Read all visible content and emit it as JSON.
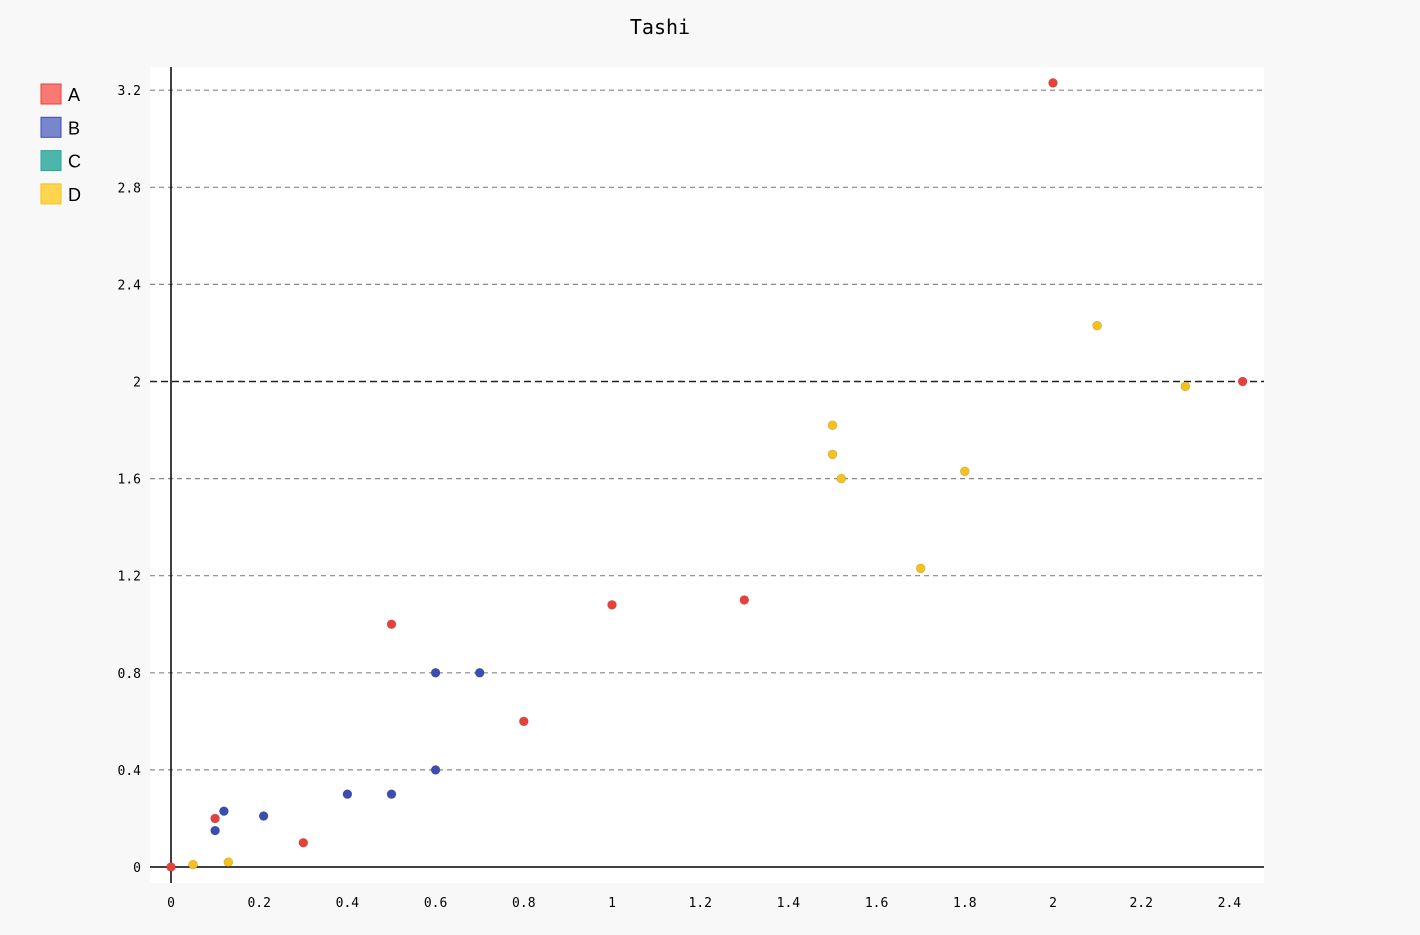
{
  "chart_data": {
    "type": "scatter",
    "title": "Tashi",
    "xlabel": "",
    "ylabel": "",
    "xlim": [
      0,
      2.48
    ],
    "ylim": [
      0,
      3.3
    ],
    "x_ticks": [
      0,
      0.2,
      0.4,
      0.6,
      0.8,
      1,
      1.2,
      1.4,
      1.6,
      1.8,
      2,
      2.2,
      2.4
    ],
    "y_ticks": [
      0,
      0.4,
      0.8,
      1.2,
      1.6,
      2,
      2.4,
      2.8,
      3.2
    ],
    "x_tick_labels": [
      "0",
      "0.2",
      "0.4",
      "0.6",
      "0.8",
      "1",
      "1.2",
      "1.4",
      "1.6",
      "1.8",
      "2",
      "2.2",
      "2.4"
    ],
    "y_tick_labels": [
      "0",
      "0.4",
      "0.8",
      "1.2",
      "1.6",
      "2",
      "2.4",
      "2.8",
      "3.2"
    ],
    "grid": "horizontal dashed",
    "highlight_y": 2,
    "legend_position": "top-left",
    "series": [
      {
        "name": "A",
        "color": "#e8413a",
        "legend_color": "#f87a72",
        "points": [
          [
            0,
            0
          ],
          [
            0.1,
            0.2
          ],
          [
            0.3,
            0.1
          ],
          [
            0.5,
            1.0
          ],
          [
            0.8,
            0.6
          ],
          [
            1.0,
            1.08
          ],
          [
            1.3,
            1.1
          ],
          [
            2.0,
            3.23
          ],
          [
            2.43,
            2.0
          ]
        ]
      },
      {
        "name": "B",
        "color": "#3b4db2",
        "legend_color": "#7886cc",
        "points": [
          [
            0.1,
            0.15
          ],
          [
            0.12,
            0.23
          ],
          [
            0.21,
            0.21
          ],
          [
            0.4,
            0.3
          ],
          [
            0.5,
            0.3
          ],
          [
            0.6,
            0.8
          ],
          [
            0.7,
            0.8
          ],
          [
            0.6,
            0.4
          ]
        ]
      },
      {
        "name": "C",
        "color": "#26a69a",
        "legend_color": "#4db6ac",
        "points": []
      },
      {
        "name": "D",
        "color": "#f5c11c",
        "legend_color": "#ffd54f",
        "points": [
          [
            0.05,
            0.01
          ],
          [
            0.13,
            0.02
          ],
          [
            1.5,
            1.82
          ],
          [
            1.5,
            1.7
          ],
          [
            1.52,
            1.6
          ],
          [
            1.7,
            1.23
          ],
          [
            1.8,
            1.63
          ],
          [
            2.1,
            2.23
          ],
          [
            2.3,
            1.98
          ]
        ]
      }
    ]
  }
}
